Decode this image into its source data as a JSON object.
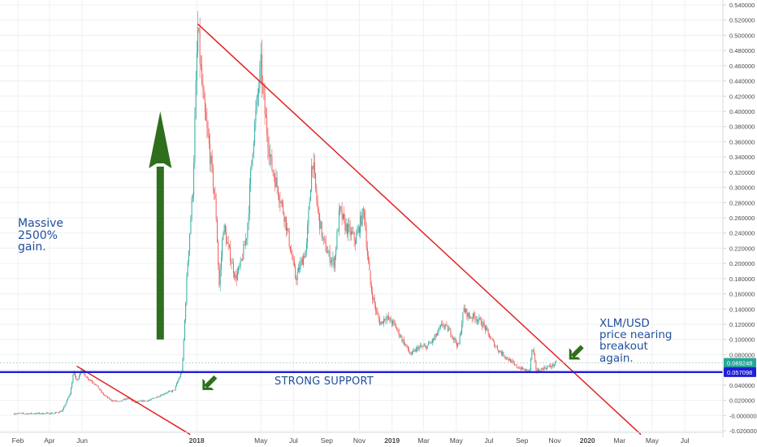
{
  "chart_data": {
    "type": "candlestick",
    "instrument": "XLM/USD",
    "x_ticks": [
      "Feb",
      "Apr",
      "Jun",
      "2018",
      "May",
      "Jul",
      "Sep",
      "Nov",
      "2019",
      "Mar",
      "May",
      "Jul",
      "Sep",
      "Nov",
      "2020",
      "Mar",
      "May",
      "Jul"
    ],
    "y_ticks": [
      "0.540000",
      "0.520000",
      "0.500000",
      "0.480000",
      "0.460000",
      "0.440000",
      "0.420000",
      "0.400000",
      "0.380000",
      "0.360000",
      "0.340000",
      "0.320000",
      "0.300000",
      "0.280000",
      "0.260000",
      "0.240000",
      "0.220000",
      "0.200000",
      "0.180000",
      "0.160000",
      "0.140000",
      "0.120000",
      "0.100000",
      "0.080000",
      "0.060000",
      "0.040000",
      "0.020000",
      "-0.000000",
      "-0.020000"
    ],
    "ylim": [
      -0.02,
      0.54
    ],
    "price_labels": {
      "last": "0.069248",
      "support": "0.057098"
    },
    "series_keypoints": [
      [
        "2017-01-25",
        0.0025
      ],
      [
        "2017-03-01",
        0.0026
      ],
      [
        "2017-04-10",
        0.003
      ],
      [
        "2017-04-25",
        0.006
      ],
      [
        "2017-05-10",
        0.03
      ],
      [
        "2017-05-16",
        0.058
      ],
      [
        "2017-05-22",
        0.045
      ],
      [
        "2017-05-30",
        0.06
      ],
      [
        "2017-06-10",
        0.05
      ],
      [
        "2017-06-25",
        0.042
      ],
      [
        "2017-07-10",
        0.028
      ],
      [
        "2017-07-25",
        0.02
      ],
      [
        "2017-08-10",
        0.018
      ],
      [
        "2017-08-25",
        0.023
      ],
      [
        "2017-09-08",
        0.017
      ],
      [
        "2017-09-20",
        0.019
      ],
      [
        "2017-10-05",
        0.02
      ],
      [
        "2017-10-20",
        0.025
      ],
      [
        "2017-11-05",
        0.03
      ],
      [
        "2017-11-20",
        0.033
      ],
      [
        "2017-12-05",
        0.06
      ],
      [
        "2017-12-15",
        0.2
      ],
      [
        "2017-12-25",
        0.3
      ],
      [
        "2018-01-03",
        0.51
      ],
      [
        "2018-01-08",
        0.46
      ],
      [
        "2018-01-15",
        0.4
      ],
      [
        "2018-01-25",
        0.35
      ],
      [
        "2018-02-06",
        0.27
      ],
      [
        "2018-02-12",
        0.17
      ],
      [
        "2018-02-20",
        0.25
      ],
      [
        "2018-03-01",
        0.22
      ],
      [
        "2018-03-15",
        0.18
      ],
      [
        "2018-03-25",
        0.2
      ],
      [
        "2018-04-05",
        0.24
      ],
      [
        "2018-04-15",
        0.35
      ],
      [
        "2018-04-25",
        0.42
      ],
      [
        "2018-05-01",
        0.46
      ],
      [
        "2018-05-08",
        0.4
      ],
      [
        "2018-05-20",
        0.33
      ],
      [
        "2018-06-01",
        0.3
      ],
      [
        "2018-06-15",
        0.26
      ],
      [
        "2018-06-25",
        0.22
      ],
      [
        "2018-07-05",
        0.18
      ],
      [
        "2018-07-15",
        0.2
      ],
      [
        "2018-07-25",
        0.22
      ],
      [
        "2018-08-05",
        0.34
      ],
      [
        "2018-08-15",
        0.27
      ],
      [
        "2018-08-25",
        0.23
      ],
      [
        "2018-09-05",
        0.21
      ],
      [
        "2018-09-15",
        0.2
      ],
      [
        "2018-09-25",
        0.27
      ],
      [
        "2018-10-05",
        0.25
      ],
      [
        "2018-10-15",
        0.24
      ],
      [
        "2018-10-25",
        0.23
      ],
      [
        "2018-11-05",
        0.26
      ],
      [
        "2018-11-10",
        0.27
      ],
      [
        "2018-11-15",
        0.22
      ],
      [
        "2018-11-22",
        0.17
      ],
      [
        "2018-12-01",
        0.14
      ],
      [
        "2018-12-10",
        0.12
      ],
      [
        "2018-12-20",
        0.13
      ],
      [
        "2019-01-05",
        0.12
      ],
      [
        "2019-01-20",
        0.1
      ],
      [
        "2019-02-05",
        0.08
      ],
      [
        "2019-02-20",
        0.09
      ],
      [
        "2019-03-05",
        0.09
      ],
      [
        "2019-03-20",
        0.1
      ],
      [
        "2019-04-05",
        0.12
      ],
      [
        "2019-04-20",
        0.11
      ],
      [
        "2019-05-05",
        0.09
      ],
      [
        "2019-05-15",
        0.14
      ],
      [
        "2019-05-25",
        0.13
      ],
      [
        "2019-06-05",
        0.13
      ],
      [
        "2019-06-20",
        0.12
      ],
      [
        "2019-07-05",
        0.1
      ],
      [
        "2019-07-20",
        0.085
      ],
      [
        "2019-08-05",
        0.075
      ],
      [
        "2019-08-20",
        0.065
      ],
      [
        "2019-09-05",
        0.06
      ],
      [
        "2019-09-15",
        0.058
      ],
      [
        "2019-09-20",
        0.09
      ],
      [
        "2019-09-28",
        0.058
      ],
      [
        "2019-10-10",
        0.062
      ],
      [
        "2019-10-25",
        0.065
      ],
      [
        "2019-11-05",
        0.0692
      ]
    ],
    "trendlines": [
      {
        "name": "main-downtrend",
        "color": "#e32222",
        "from": [
          "2018-01-03",
          0.515
        ],
        "to": [
          "2020-04-10",
          -0.025
        ]
      },
      {
        "name": "early-downtrend",
        "color": "#e32222",
        "from": [
          "2017-05-22",
          0.065
        ],
        "to": [
          "2017-12-20",
          -0.025
        ]
      }
    ],
    "hlines": [
      {
        "name": "support",
        "value": 0.057098,
        "color": "#1f1fd4"
      }
    ],
    "up_arrow": {
      "from": [
        "2017-10-25",
        0.1
      ],
      "to": [
        "2017-10-25",
        0.4
      ],
      "color": "#2e6e1c"
    },
    "small_arrows": [
      {
        "at": [
          "2018-01-15",
          0.04
        ],
        "color": "#2e6e1c"
      },
      {
        "at": [
          "2019-12-01",
          0.08
        ],
        "color": "#2e6e1c"
      }
    ]
  },
  "annotations": {
    "left": "Massive\n2500%\ngain.",
    "right": "XLM/USD\nprice nearing\nbreakout\nagain.",
    "support": "STRONG SUPPORT"
  },
  "colors": {
    "up": "#26a69a",
    "down": "#ef5350",
    "grid": "#eef0f3",
    "text": "#4a4a4a",
    "price_line": "#b7d7cf",
    "price_label_bg": "#26a69a",
    "support_label_bg": "#1f1fd4"
  }
}
